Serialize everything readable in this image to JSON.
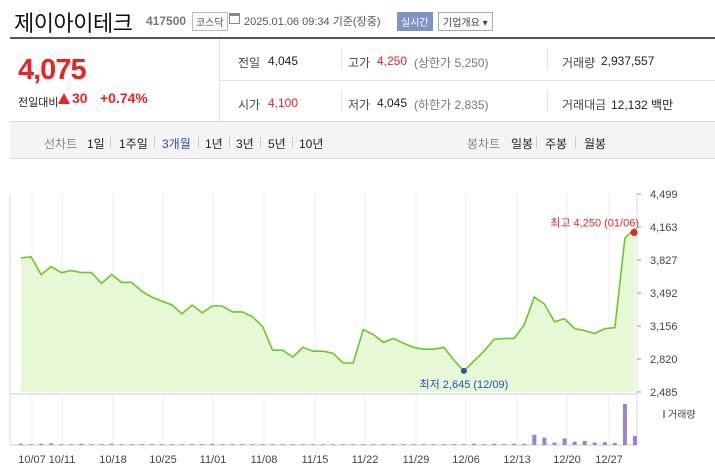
{
  "header": {
    "company": "제이아이테크",
    "code": "417500",
    "market": "코스닥",
    "datetime": "2025.01.06 09:34  기준(장중)",
    "live_label": "실시간",
    "info_label": "기업개요 ▾"
  },
  "summary": {
    "price": "4,075",
    "change_label": "전일대비",
    "change": "30",
    "change_rate": "+0.74%",
    "prev_label": "전일",
    "prev": "4,045",
    "open_label": "시가",
    "open": "4,100",
    "high_label": "고가",
    "high": "4,250",
    "upper_limit": "(상한가 5,250)",
    "low_label": "저가",
    "low": "4,045",
    "lower_limit": "(하한가 2,835)",
    "volume_label": "거래량",
    "volume": "2,937,557",
    "amount_label": "거래대금",
    "amount": "12,132 백만"
  },
  "period_bar": {
    "line_label": "선차트",
    "periods": [
      "1일",
      "1주일",
      "3개월",
      "1년",
      "3년",
      "5년",
      "10년"
    ],
    "selected": "3개월",
    "candle_label": "봉차트",
    "candles": [
      "일봉",
      "주봉",
      "월봉"
    ]
  },
  "colors": {
    "up": "#ee2222",
    "line": "#66cc22",
    "fill": "#e6f8d6",
    "volume": "#9d84c9",
    "low_marker": "#2255bb"
  },
  "chart_data": {
    "type": "area",
    "y_ticks": [
      "4,499",
      "4,163",
      "3,827",
      "3,492",
      "3,156",
      "2,820",
      "2,485"
    ],
    "ylim": [
      2485,
      4499
    ],
    "x_ticks": [
      "10/07",
      "10/11",
      "10/18",
      "10/25",
      "11/01",
      "11/08",
      "11/15",
      "11/22",
      "11/29",
      "12/06",
      "12/13",
      "12/20",
      "12/27"
    ],
    "high_label": "최고 4,250 (01/06)",
    "low_label": "최저 2,645 (12/09)",
    "volume_label": "거래량",
    "series": [
      {
        "values": [
          3850,
          3860,
          3680,
          3760,
          3700,
          3720,
          3700,
          3700,
          3590,
          3680,
          3600,
          3600,
          3510,
          3450,
          3410,
          3370,
          3280,
          3370,
          3290,
          3360,
          3360,
          3300,
          3300,
          3250,
          3150,
          2910,
          2910,
          2840,
          2940,
          2900,
          2900,
          2880,
          2780,
          2780,
          3120,
          3070,
          2990,
          3030,
          2980,
          2940,
          2920,
          2920,
          2940,
          2810,
          2700,
          2800,
          2900,
          3020,
          3030,
          3030,
          3170,
          3450,
          3380,
          3200,
          3230,
          3130,
          3110,
          3080,
          3130,
          3140,
          4050,
          4150
        ]
      }
    ],
    "volume": [
      3,
      2,
      3,
      4,
      2,
      2,
      3,
      2,
      2,
      3,
      2,
      2,
      2,
      2,
      2,
      2,
      2,
      2,
      2,
      3,
      2,
      2,
      2,
      2,
      2,
      2,
      2,
      2,
      2,
      2,
      2,
      2,
      2,
      2,
      2,
      2,
      2,
      2,
      2,
      2,
      2,
      2,
      2,
      2,
      2,
      3,
      2,
      3,
      2,
      3,
      3,
      25,
      18,
      6,
      16,
      8,
      10,
      6,
      7,
      5,
      100,
      22
    ]
  }
}
